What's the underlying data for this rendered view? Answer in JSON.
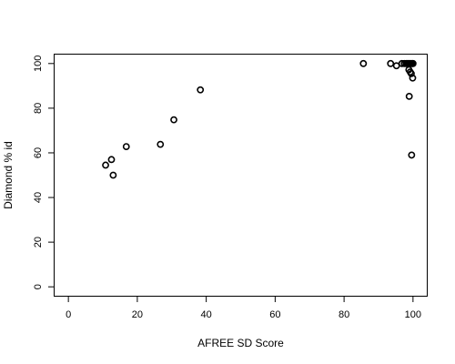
{
  "chart_data": {
    "type": "scatter",
    "title": "",
    "xlabel": "AFREE SD Score",
    "ylabel": "Diamond % id",
    "xlim": [
      -4,
      104
    ],
    "ylim": [
      -4,
      104
    ],
    "x_ticks": [
      0,
      20,
      40,
      60,
      80,
      100
    ],
    "y_ticks": [
      0,
      20,
      40,
      60,
      80,
      100
    ],
    "grid": false,
    "legend": "none",
    "point_color": "#000000",
    "series": [
      {
        "points": [
          {
            "x": 10.8,
            "y": 54.5
          },
          {
            "x": 12.5,
            "y": 57.0
          },
          {
            "x": 13.0,
            "y": 50.0
          },
          {
            "x": 16.8,
            "y": 62.8
          },
          {
            "x": 26.7,
            "y": 63.8
          },
          {
            "x": 30.6,
            "y": 74.8
          },
          {
            "x": 38.3,
            "y": 88.2
          },
          {
            "x": 85.6,
            "y": 100.0
          },
          {
            "x": 93.5,
            "y": 100.0
          },
          {
            "x": 95.2,
            "y": 99.0
          },
          {
            "x": 96.8,
            "y": 100.0
          },
          {
            "x": 97.5,
            "y": 100.0
          },
          {
            "x": 98.0,
            "y": 100.0
          },
          {
            "x": 98.3,
            "y": 100.0
          },
          {
            "x": 98.6,
            "y": 100.0
          },
          {
            "x": 98.9,
            "y": 100.0
          },
          {
            "x": 99.2,
            "y": 100.0
          },
          {
            "x": 99.5,
            "y": 100.0
          },
          {
            "x": 99.8,
            "y": 100.0
          },
          {
            "x": 100.0,
            "y": 100.0
          },
          {
            "x": 98.8,
            "y": 97.2
          },
          {
            "x": 99.2,
            "y": 96.2
          },
          {
            "x": 99.5,
            "y": 95.5
          },
          {
            "x": 99.9,
            "y": 93.5
          },
          {
            "x": 98.9,
            "y": 85.3
          },
          {
            "x": 99.6,
            "y": 59.0
          }
        ]
      }
    ]
  }
}
